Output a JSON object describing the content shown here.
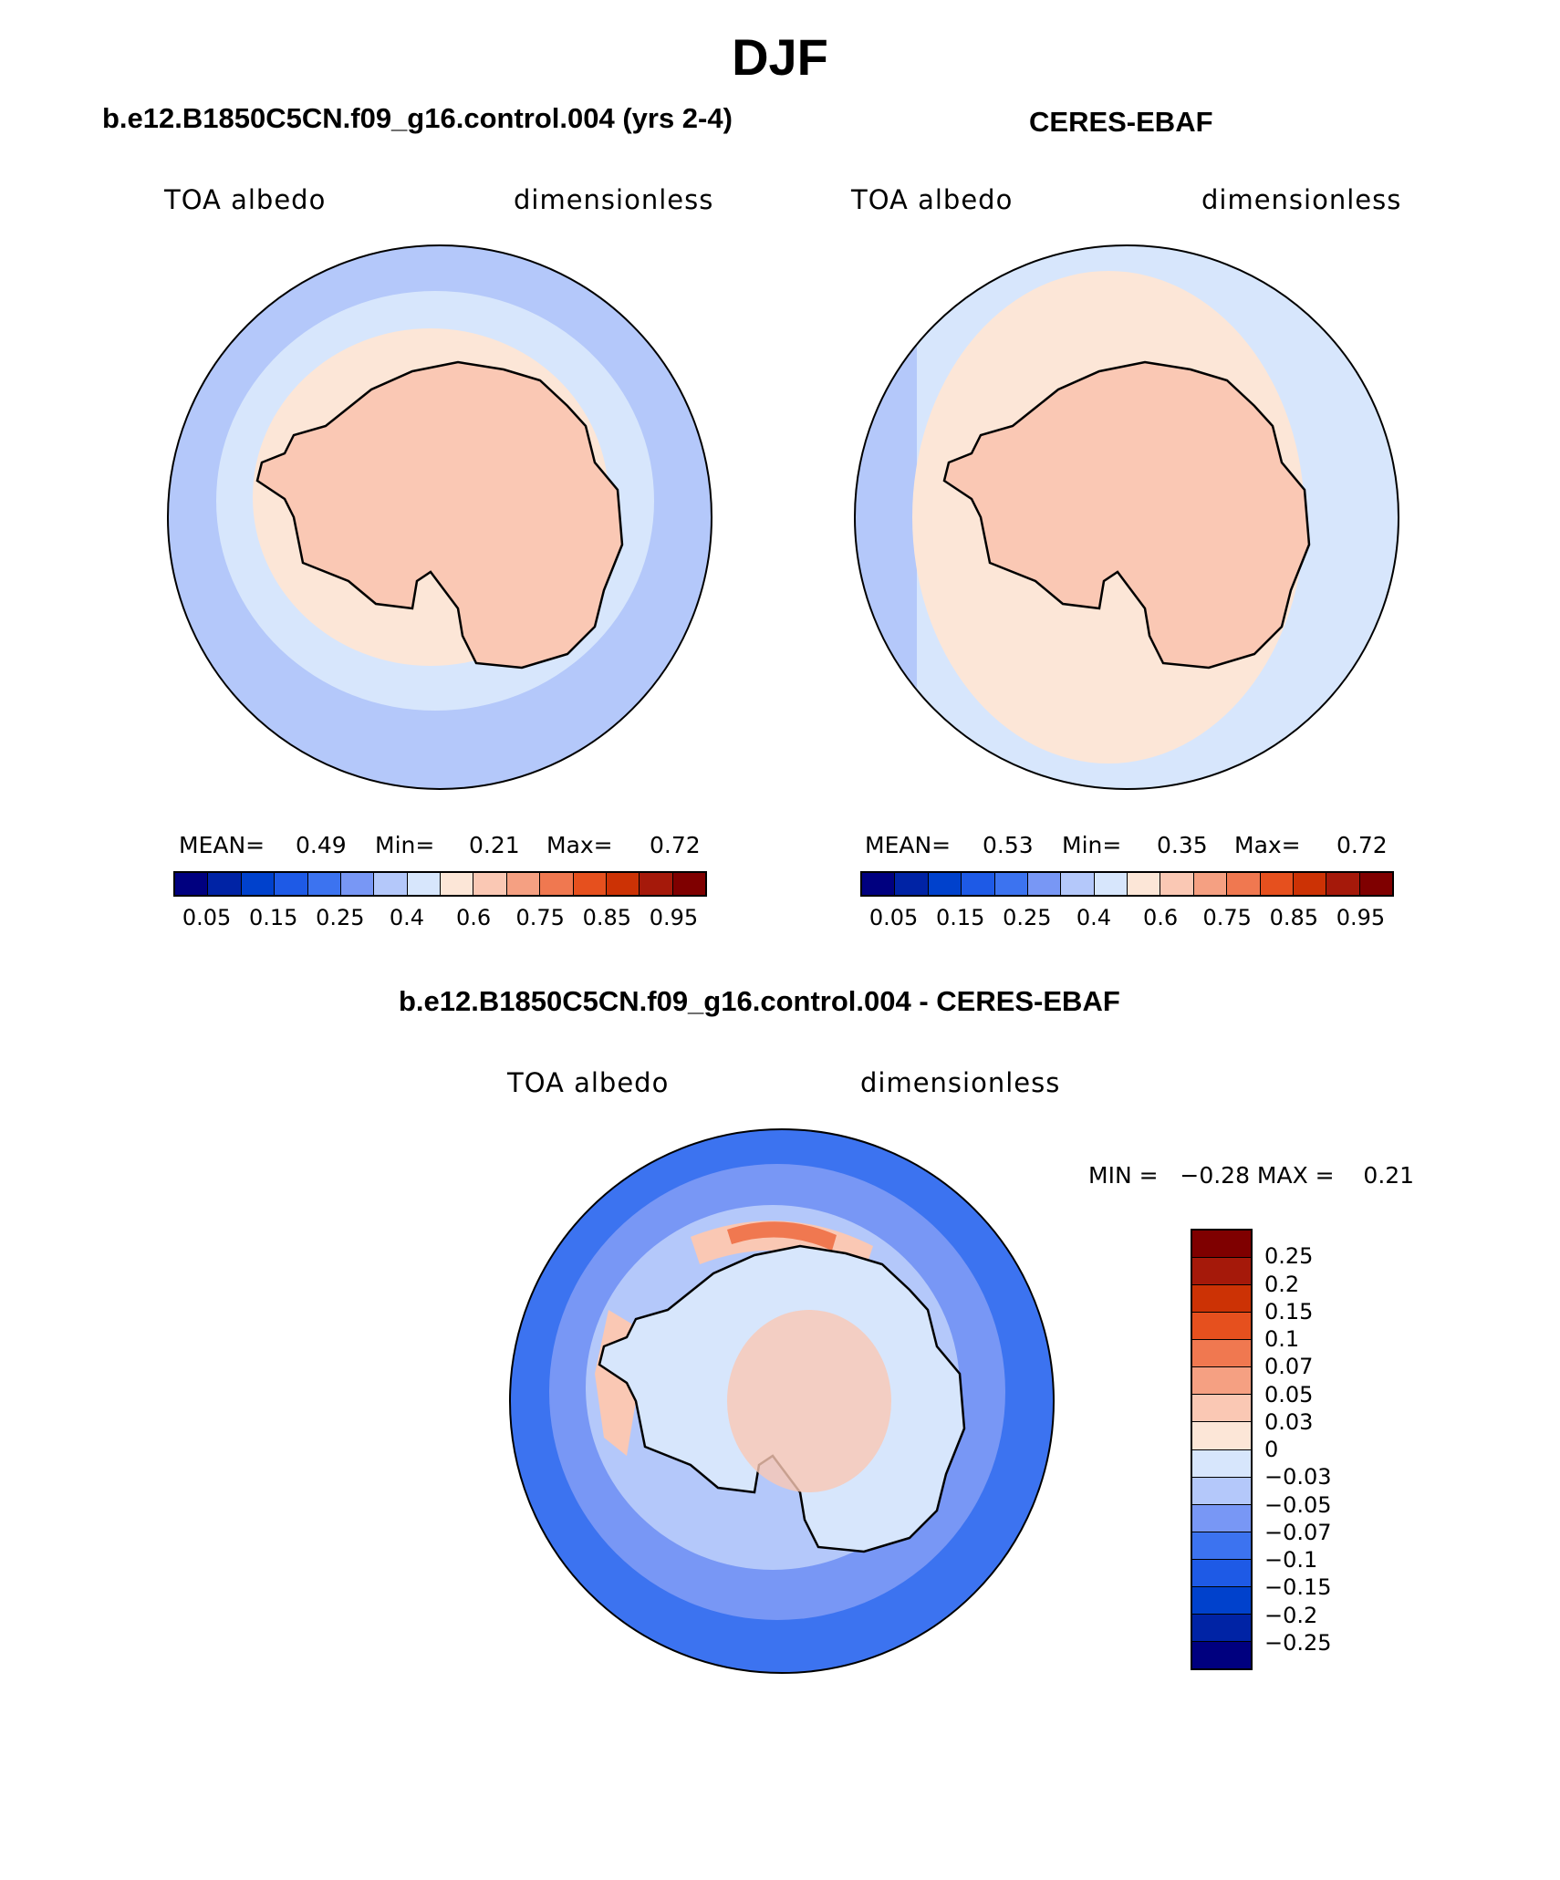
{
  "title": "DJF",
  "panels": {
    "model": {
      "subtitle": "b.e12.B1850C5CN.f09_g16.control.004 (yrs 2-4)",
      "left_label": "TOA albedo",
      "right_label": "dimensionless",
      "mean_label": "MEAN=",
      "mean_value": "0.49",
      "min_label": "Min=",
      "min_value": "0.21",
      "max_label": "Max=",
      "max_value": "0.72"
    },
    "obs": {
      "subtitle": "CERES-EBAF",
      "left_label": "TOA albedo",
      "right_label": "dimensionless",
      "mean_label": "MEAN=",
      "mean_value": "0.53",
      "min_label": "Min=",
      "min_value": "0.35",
      "max_label": "Max=",
      "max_value": "0.72"
    },
    "diff": {
      "subtitle": "b.e12.B1850C5CN.f09_g16.control.004 - CERES-EBAF",
      "left_label": "TOA albedo",
      "right_label": "dimensionless",
      "minmax_text": "MIN =   −0.28 MAX =    0.21"
    }
  },
  "colorbar_abs": {
    "colors": [
      "#00007f",
      "#0023a5",
      "#0041cc",
      "#1e5ae6",
      "#3c73f0",
      "#7897f5",
      "#b4c8fa",
      "#d7e6fc",
      "#fce6d7",
      "#fac8b4",
      "#f5a082",
      "#f07850",
      "#e6501e",
      "#cc3205",
      "#a5190a",
      "#7f0000"
    ],
    "tick_labels": [
      "0.05",
      "0.15",
      "0.25",
      "0.4",
      "0.6",
      "0.75",
      "0.85",
      "0.95"
    ]
  },
  "colorbar_diff": {
    "colors": [
      "#7f0000",
      "#a5190a",
      "#cc3205",
      "#e6501e",
      "#f07850",
      "#f5a082",
      "#fac8b4",
      "#fce6d7",
      "#d7e6fc",
      "#b4c8fa",
      "#7897f5",
      "#3c73f0",
      "#1e5ae6",
      "#0041cc",
      "#0023a5",
      "#00007f"
    ],
    "tick_labels": [
      "0.25",
      "0.2",
      "0.15",
      "0.1",
      "0.07",
      "0.05",
      "0.03",
      "0",
      "−0.03",
      "−0.05",
      "−0.07",
      "−0.1",
      "−0.15",
      "−0.2",
      "−0.25"
    ]
  },
  "map_colors": {
    "ocean_far": "#b4c8fa",
    "ocean_mid": "#d7e6fc",
    "ice_edge": "#fce6d7",
    "continent": "#fac8b4",
    "diff_far": "#3c73f0",
    "diff_mid": "#7897f5",
    "diff_near": "#b4c8fa",
    "diff_land": "#d7e6fc",
    "diff_pos": "#fac8b4",
    "diff_hot": "#f07850"
  }
}
